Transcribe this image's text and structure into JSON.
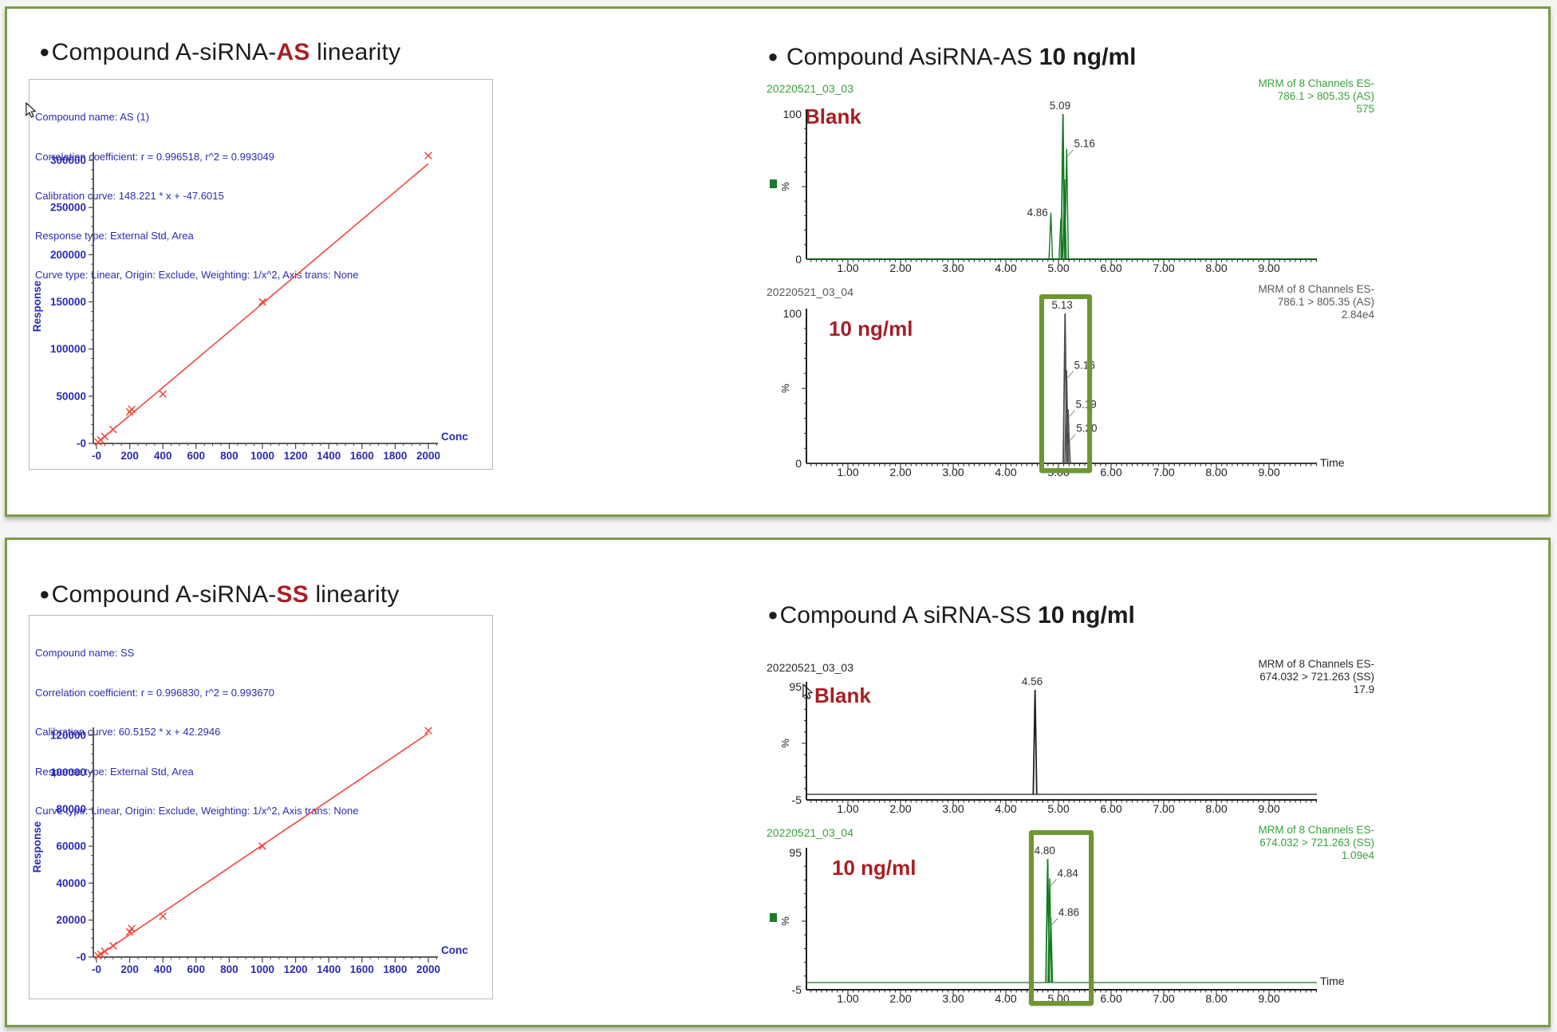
{
  "colors": {
    "panel_border": "#7c9b45",
    "accent_red": "#a81e24",
    "trace_green": "#127a20",
    "green_text": "#38a23c",
    "grey_text": "#595959",
    "black_text": "#2a2a2a",
    "highlight_green": "#6e9733",
    "label_blue": "#2b2bb5",
    "series_red": "#f2473f"
  },
  "panel1": {
    "title": {
      "bullet": "●",
      "prefix": "Compound A-siRNA-",
      "accent": "AS",
      "suffix": " linearity"
    },
    "right_title": {
      "bullet": "●",
      "prefix": " Compound AsiRNA-AS ",
      "bold": "10 ng/ml"
    }
  },
  "panel2": {
    "title": {
      "bullet": "●",
      "prefix": "Compound A-siRNA-",
      "accent": "SS",
      "suffix": " linearity"
    },
    "right_title": {
      "bullet": "●",
      "prefix": "Compound A siRNA-SS ",
      "bold": "10 ng/ml"
    }
  },
  "chart_data": [
    {
      "type": "scatter",
      "name": "as-calibration",
      "header_lines": [
        "Compound name: AS (1)",
        "Correlation coefficient: r = 0.996518, r^2 = 0.993049",
        "Calibration curve: 148.221 * x + -47.6015",
        "Response type: External Std, Area",
        "Curve type: Linear, Origin: Exclude, Weighting: 1/x^2, Axis trans: None"
      ],
      "xlabel": "Conc",
      "ylabel": "Response",
      "xlim": [
        0,
        2060
      ],
      "ylim": [
        0,
        300000
      ],
      "x_ticks": {
        "values": [
          0,
          200,
          400,
          600,
          800,
          1000,
          1200,
          1400,
          1600,
          1800,
          2000
        ],
        "labels": [
          "-0",
          "200",
          "400",
          "600",
          "800",
          "1000",
          "1200",
          "1400",
          "1600",
          "1800",
          "2000"
        ]
      },
      "y_ticks": {
        "values": [
          300000,
          250000,
          200000,
          150000,
          100000,
          50000,
          0
        ],
        "labels": [
          "300000",
          "250000",
          "200000",
          "150000",
          "100000",
          "50000",
          "-0"
        ]
      },
      "fit_line": {
        "slope": 148.221,
        "intercept": -47.6015,
        "x_end": 2000
      },
      "points": [
        [
          10,
          1435
        ],
        [
          25,
          3700
        ],
        [
          50,
          7400
        ],
        [
          100,
          14800
        ],
        [
          200,
          33500
        ],
        [
          212,
          36200
        ],
        [
          400,
          52300
        ],
        [
          1000,
          150000
        ],
        [
          2000,
          305000
        ]
      ]
    },
    {
      "type": "line",
      "name": "as-blank-chromatogram",
      "run_label": "20220521_03_03",
      "info_lines": [
        "MRM of 8 Channels ES-",
        "786.1 > 805.35 (AS)",
        "575"
      ],
      "annotation": "Blank",
      "ylabel": "%",
      "y_top_label": "100",
      "y_bottom_label": "0",
      "x_ticks": [
        "1.00",
        "2.00",
        "3.00",
        "4.00",
        "5.00",
        "6.00",
        "7.00",
        "8.00",
        "9.00"
      ],
      "time_label": "",
      "peaks": [
        {
          "t": 4.86,
          "h": 0.32,
          "label": "4.86"
        },
        {
          "t": 5.05,
          "h": 0.28,
          "label": ""
        },
        {
          "t": 5.09,
          "h": 1.0,
          "label": "5.09"
        },
        {
          "t": 5.12,
          "h": 0.55,
          "label": ""
        },
        {
          "t": 5.16,
          "h": 0.76,
          "label": "5.16"
        }
      ]
    },
    {
      "type": "line",
      "name": "as-10ngml-chromatogram",
      "run_label": "20220521_03_04",
      "info_lines": [
        "MRM of 8 Channels ES-",
        "786.1 > 805.35 (AS)",
        "2.84e4"
      ],
      "annotation": "10 ng/ml",
      "ylabel": "%",
      "y_top_label": "100",
      "y_bottom_label": "0",
      "x_ticks": [
        "1.00",
        "2.00",
        "3.00",
        "4.00",
        "5.00",
        "6.00",
        "7.00",
        "8.00",
        "9.00"
      ],
      "time_label": "Time",
      "peaks": [
        {
          "t": 5.13,
          "h": 1.0,
          "label": "5.13"
        },
        {
          "t": 5.16,
          "h": 0.62,
          "label": "5.16"
        },
        {
          "t": 5.19,
          "h": 0.36,
          "label": "5.19"
        },
        {
          "t": 5.2,
          "h": 0.2,
          "label": "5.20"
        }
      ]
    },
    {
      "type": "scatter",
      "name": "ss-calibration",
      "header_lines": [
        "Compound name: SS",
        "Correlation coefficient: r = 0.996830, r^2 = 0.993670",
        "Calibration curve: 60.5152 * x + 42.2946",
        "Response type: External Std, Area",
        "Curve type: Linear, Origin: Exclude, Weighting: 1/x^2, Axis trans: None"
      ],
      "xlabel": "Conc",
      "ylabel": "Response",
      "xlim": [
        0,
        2060
      ],
      "ylim": [
        0,
        120000
      ],
      "x_ticks": {
        "values": [
          0,
          200,
          400,
          600,
          800,
          1000,
          1200,
          1400,
          1600,
          1800,
          2000
        ],
        "labels": [
          "-0",
          "200",
          "400",
          "600",
          "800",
          "1000",
          "1200",
          "1400",
          "1600",
          "1800",
          "2000"
        ]
      },
      "y_ticks": {
        "values": [
          120000,
          100000,
          80000,
          60000,
          40000,
          20000,
          0
        ],
        "labels": [
          "120000",
          "100000",
          "80000",
          "60000",
          "40000",
          "20000",
          "-0"
        ]
      },
      "fit_line": {
        "slope": 60.5152,
        "intercept": 42.2946,
        "x_end": 2000
      },
      "points": [
        [
          10,
          640
        ],
        [
          25,
          1550
        ],
        [
          50,
          3070
        ],
        [
          100,
          6100
        ],
        [
          200,
          13600
        ],
        [
          212,
          15400
        ],
        [
          400,
          22100
        ],
        [
          1000,
          60000
        ],
        [
          2000,
          122500
        ]
      ]
    },
    {
      "type": "line",
      "name": "ss-blank-chromatogram",
      "run_label": "20220521_03_03",
      "info_lines": [
        "MRM of 8 Channels ES-",
        "674.032 > 721.263 (SS)",
        "17.9"
      ],
      "annotation": "Blank",
      "ylabel": "%",
      "y_top_label": "95",
      "y_bottom_label": "-5",
      "x_ticks": [
        "1.00",
        "2.00",
        "3.00",
        "4.00",
        "5.00",
        "6.00",
        "7.00",
        "8.00",
        "9.00"
      ],
      "time_label": "",
      "peaks": [
        {
          "t": 4.56,
          "h": 0.97,
          "label": "4.56"
        }
      ]
    },
    {
      "type": "line",
      "name": "ss-10ngml-chromatogram",
      "run_label": "20220521_03_04",
      "info_lines": [
        "MRM of 8 Channels ES-",
        "674.032 > 721.263 (SS)",
        "1.09e4"
      ],
      "annotation": "10 ng/ml",
      "ylabel": "%",
      "y_top_label": "95",
      "y_bottom_label": "-5",
      "x_ticks": [
        "1.00",
        "2.00",
        "3.00",
        "4.00",
        "5.00",
        "6.00",
        "7.00",
        "8.00",
        "9.00"
      ],
      "time_label": "Time",
      "peaks": [
        {
          "t": 4.8,
          "h": 0.95,
          "label": "4.80"
        },
        {
          "t": 4.84,
          "h": 0.8,
          "label": "4.84"
        },
        {
          "t": 4.86,
          "h": 0.5,
          "label": "4.86"
        }
      ]
    }
  ]
}
